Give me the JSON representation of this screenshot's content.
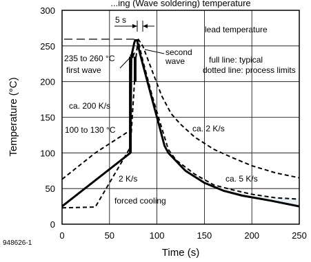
{
  "chart_data": {
    "type": "line",
    "title": "...ing (Wave soldering) temperature",
    "xlabel": "Time (s)",
    "ylabel": "Temperature (°C)",
    "xlim": [
      0,
      250
    ],
    "ylim": [
      0,
      300
    ],
    "x_ticks": [
      0,
      50,
      100,
      150,
      200,
      250
    ],
    "y_ticks": [
      0,
      50,
      100,
      150,
      200,
      250,
      300
    ],
    "x_tick_labels": [
      "0",
      "50",
      "100",
      "150",
      "200",
      "250"
    ],
    "y_tick_labels": [
      "0",
      "50",
      "100",
      "150",
      "200",
      "250",
      "300"
    ],
    "grid": true,
    "colors": {
      "line": "#000000",
      "band": "#e8f1f3"
    },
    "series": [
      {
        "style": "solid",
        "points": [
          [
            0,
            25
          ],
          [
            72,
            100
          ],
          [
            73,
            235
          ],
          [
            76,
            254
          ],
          [
            77,
            258
          ],
          [
            79,
            258
          ],
          [
            82,
            240
          ],
          [
            90,
            200
          ],
          [
            100,
            150
          ],
          [
            108,
            110
          ],
          [
            112,
            100
          ],
          [
            130,
            75
          ],
          [
            150,
            58
          ],
          [
            170,
            47
          ],
          [
            190,
            40
          ],
          [
            220,
            33
          ],
          [
            250,
            25
          ]
        ]
      },
      {
        "style": "dashed-upper",
        "points": [
          [
            80,
            260
          ],
          [
            85,
            250
          ],
          [
            95,
            215
          ],
          [
            105,
            180
          ],
          [
            115,
            155
          ],
          [
            125,
            140
          ],
          [
            140,
            122
          ],
          [
            160,
            105
          ],
          [
            180,
            93
          ],
          [
            200,
            82
          ],
          [
            225,
            72
          ],
          [
            250,
            65
          ]
        ]
      },
      {
        "style": "dashed-lower",
        "points": [
          [
            0,
            23
          ],
          [
            35,
            24
          ],
          [
            72,
            108
          ],
          [
            78,
            235
          ],
          [
            80,
            258
          ],
          [
            85,
            230
          ],
          [
            95,
            180
          ],
          [
            105,
            135
          ],
          [
            112,
            105
          ],
          [
            120,
            90
          ],
          [
            140,
            70
          ],
          [
            160,
            55
          ],
          [
            180,
            48
          ],
          [
            200,
            42
          ],
          [
            225,
            37
          ],
          [
            250,
            35
          ]
        ]
      },
      {
        "style": "dashed-preheat",
        "points": [
          [
            0,
            63
          ],
          [
            35,
            100
          ],
          [
            70,
            130
          ]
        ]
      }
    ],
    "wave_bars": [
      {
        "x": 72,
        "y_from": 100,
        "y_to": 235
      },
      {
        "x": 77,
        "y_from": 200,
        "y_to": 235
      }
    ],
    "annotations": {
      "five_s": "5 s",
      "lead_temp": "lead temperature",
      "second_wave_1": "second",
      "second_wave_2": "wave",
      "full_line": "full line: typical",
      "dotted_line": "dotted line: process limits",
      "range_235": "235 to 260 °C",
      "first_wave": "first wave",
      "rate_200": "ca. 200 K/s",
      "range_100": "100 to 130 °C",
      "rate_2_right": "ca. 2 K/s",
      "rate_2_left": "2 K/s",
      "rate_5": "ca. 5 K/s",
      "forced_cooling": "forced cooling"
    },
    "figure_id": "948626-1"
  }
}
